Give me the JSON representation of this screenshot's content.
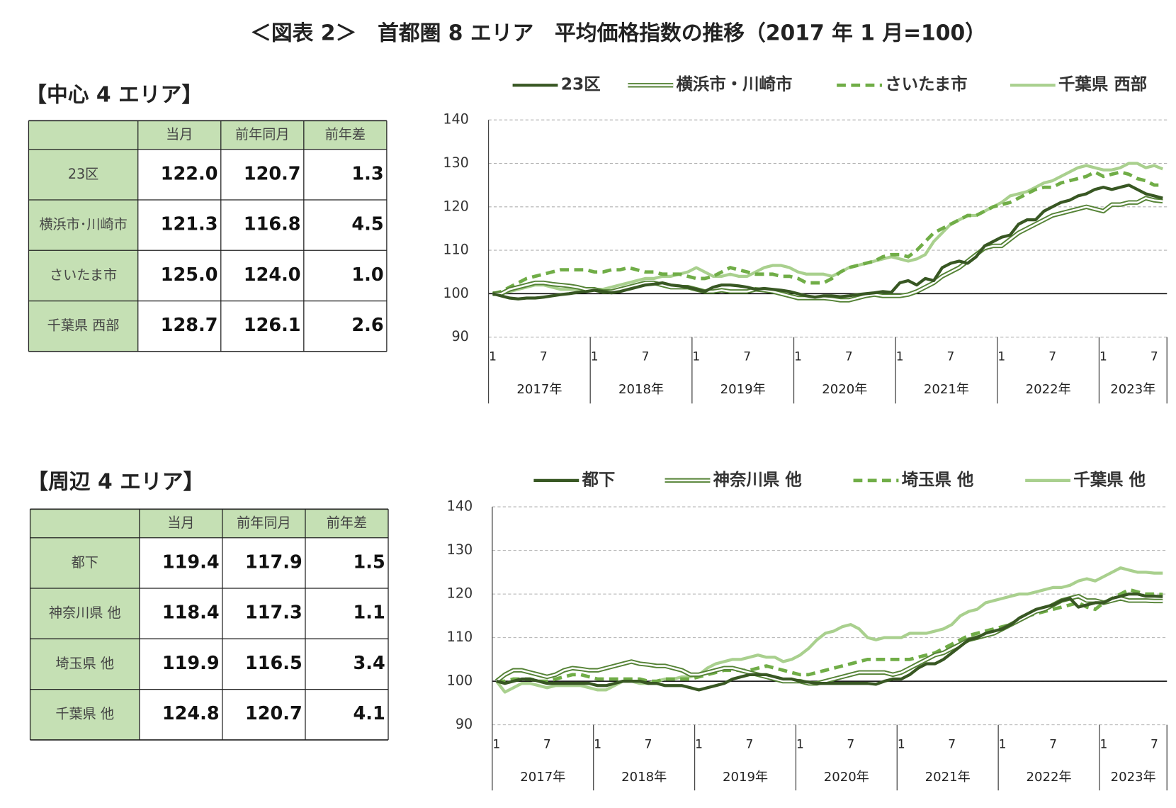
{
  "title": "＜図表 2＞　首都圏 8 エリア　平均価格指数の推移（2017 年 1 月=100）",
  "sections": [
    {
      "heading": "【中心 4 エリア】",
      "table": {
        "columns": [
          "当月",
          "前年同月",
          "前年差"
        ],
        "rows": [
          [
            "23区",
            "122.0",
            "120.7",
            "1.3"
          ],
          [
            "横浜市･川崎市",
            "121.3",
            "116.8",
            "4.5"
          ],
          [
            "さいたま市",
            "125.0",
            "124.0",
            "1.0"
          ],
          [
            "千葉県 西部",
            "128.7",
            "126.1",
            "2.6"
          ]
        ]
      }
    },
    {
      "heading": "【周辺 4 エリア】",
      "table": {
        "columns": [
          "当月",
          "前年同月",
          "前年差"
        ],
        "rows": [
          [
            "都下",
            "119.4",
            "117.9",
            "1.5"
          ],
          [
            "神奈川県 他",
            "118.4",
            "117.3",
            "1.1"
          ],
          [
            "埼玉県 他",
            "119.9",
            "116.5",
            "3.4"
          ],
          [
            "千葉県 他",
            "124.8",
            "120.7",
            "4.1"
          ]
        ]
      }
    }
  ],
  "chart_data": [
    {
      "type": "line",
      "categories": [
        "1",
        null,
        null,
        null,
        null,
        null,
        "7",
        null,
        null,
        null,
        null,
        null,
        "1",
        null,
        null,
        null,
        null,
        null,
        "7",
        null,
        null,
        null,
        null,
        null,
        "1",
        null,
        null,
        null,
        null,
        null,
        "7",
        null,
        null,
        null,
        null,
        null,
        "1",
        null,
        null,
        null,
        null,
        null,
        "7",
        null,
        null,
        null,
        null,
        null,
        "1",
        null,
        null,
        null,
        null,
        null,
        "7",
        null,
        null,
        null,
        null,
        null,
        "1",
        null,
        null,
        null,
        null,
        null,
        "7",
        null,
        null,
        null,
        null,
        null,
        "1",
        null,
        null,
        null,
        null,
        null,
        "7",
        null
      ],
      "year_labels": [
        "2017年",
        "2018年",
        "2019年",
        "2020年",
        "2021年",
        "2022年",
        "2023年"
      ],
      "ylim": [
        90,
        140
      ],
      "yticks": [
        90,
        100,
        110,
        120,
        130,
        140
      ],
      "grid": true,
      "reference_line": 100,
      "legend": "top",
      "series": [
        {
          "name": "23区",
          "color": "#385723",
          "line_style": "solid",
          "values": [
            100,
            99.5,
            99,
            98.8,
            99,
            99,
            99.2,
            99.5,
            99.8,
            100,
            100.3,
            100.5,
            100.8,
            100.5,
            100.2,
            100.5,
            101,
            101.5,
            102,
            102.2,
            102.5,
            102,
            101.8,
            101.5,
            101,
            100.5,
            101.5,
            102,
            102,
            101.8,
            101.5,
            101,
            101.2,
            101,
            100.8,
            100.5,
            100,
            99.5,
            99.2,
            99.5,
            99.5,
            99.3,
            99.5,
            99.8,
            100,
            100.2,
            100.5,
            100.3,
            102.5,
            103,
            102,
            103.5,
            103,
            106,
            107,
            107.5,
            107,
            108.5,
            111,
            112,
            113,
            113.5,
            116,
            117,
            117,
            119,
            120,
            121,
            121.5,
            122.5,
            123,
            124,
            124.5,
            124,
            124.5,
            125,
            124,
            123,
            122.5,
            122
          ]
        },
        {
          "name": "横浜市・川崎市",
          "color": "#548235",
          "line_style": "double",
          "values": [
            100,
            100,
            101,
            101.5,
            102,
            102.5,
            102.5,
            102.2,
            102,
            101.8,
            101.5,
            101,
            101,
            100.5,
            100.5,
            101,
            101.5,
            102,
            102.5,
            102.5,
            102,
            101.5,
            101.5,
            101.5,
            101,
            100.5,
            100.5,
            100.8,
            100.5,
            100.5,
            100.5,
            101,
            100.8,
            100.5,
            100,
            99.5,
            99,
            99,
            99,
            99,
            98.8,
            98.5,
            98.5,
            99,
            99.5,
            99.8,
            99.5,
            99.5,
            99.5,
            99.8,
            100.5,
            101.5,
            102.5,
            104,
            105,
            106,
            107.5,
            109,
            110.5,
            111,
            111,
            112.5,
            114,
            115,
            116,
            117,
            118,
            118.5,
            119,
            119.5,
            120,
            119.5,
            119,
            120.5,
            120.5,
            121,
            121,
            122,
            121.5,
            121.3
          ]
        },
        {
          "name": "さいたま市",
          "color": "#70ad47",
          "line_style": "dashed",
          "values": [
            100,
            100.5,
            101.5,
            102.5,
            103.5,
            104,
            104.5,
            105,
            105.5,
            105.5,
            105.5,
            105.5,
            105,
            105,
            105.5,
            105.5,
            106,
            105.5,
            105,
            105,
            104.5,
            104.5,
            104.5,
            104,
            103.5,
            103.5,
            104,
            105,
            106,
            105.5,
            105,
            104.5,
            104.5,
            104.5,
            104,
            104,
            103.5,
            102.5,
            102.5,
            102.5,
            103.5,
            105,
            106,
            106.5,
            107,
            107.5,
            108.5,
            109,
            109,
            108.5,
            110,
            112,
            114,
            115,
            116,
            117,
            118,
            118,
            119,
            120,
            120.5,
            121,
            122,
            123,
            124,
            124.5,
            124.5,
            125.5,
            126,
            126.5,
            127,
            128,
            127,
            127.5,
            128,
            127.5,
            126.5,
            126,
            125,
            125
          ]
        },
        {
          "name": "千葉県 西部",
          "color": "#a9d08e",
          "line_style": "solid",
          "values": [
            100,
            100,
            100.5,
            101,
            101.5,
            102,
            102,
            101.5,
            101,
            101,
            101,
            101,
            101,
            101,
            101.5,
            102,
            102.5,
            103,
            103.5,
            103.5,
            104,
            104,
            104.5,
            105,
            106,
            105,
            104,
            104,
            104.5,
            104,
            104,
            105,
            106,
            106.5,
            106.5,
            106,
            105,
            104.5,
            104.5,
            104.5,
            104,
            105,
            106,
            106.5,
            107,
            107.5,
            108,
            108.5,
            108,
            107.5,
            108,
            109,
            112,
            114,
            116,
            117,
            118,
            118,
            119,
            120,
            121,
            122.5,
            123,
            123.5,
            124.5,
            125.5,
            126,
            127,
            128,
            129,
            129.5,
            129,
            128.5,
            128.5,
            129,
            130,
            130,
            129,
            129.5,
            128.7
          ]
        }
      ]
    },
    {
      "type": "line",
      "categories": [
        "1",
        null,
        null,
        null,
        null,
        null,
        "7",
        null,
        null,
        null,
        null,
        null,
        "1",
        null,
        null,
        null,
        null,
        null,
        "7",
        null,
        null,
        null,
        null,
        null,
        "1",
        null,
        null,
        null,
        null,
        null,
        "7",
        null,
        null,
        null,
        null,
        null,
        "1",
        null,
        null,
        null,
        null,
        null,
        "7",
        null,
        null,
        null,
        null,
        null,
        "1",
        null,
        null,
        null,
        null,
        null,
        "7",
        null,
        null,
        null,
        null,
        null,
        "1",
        null,
        null,
        null,
        null,
        null,
        "7",
        null,
        null,
        null,
        null,
        null,
        "1",
        null,
        null,
        null,
        null,
        null,
        "7",
        null
      ],
      "year_labels": [
        "2017年",
        "2018年",
        "2019年",
        "2020年",
        "2021年",
        "2022年",
        "2023年"
      ],
      "ylim": [
        90,
        140
      ],
      "yticks": [
        90,
        100,
        110,
        120,
        130,
        140
      ],
      "grid": true,
      "reference_line": 100,
      "legend": "top",
      "series": [
        {
          "name": "都下",
          "color": "#385723",
          "line_style": "solid",
          "values": [
            100,
            99.5,
            100,
            100.5,
            100.5,
            100,
            99.5,
            99.5,
            99.5,
            99.5,
            99.5,
            99.5,
            99,
            99,
            99.5,
            100,
            100,
            100,
            99.5,
            99.5,
            99,
            99,
            99,
            98.5,
            98,
            98.5,
            99,
            99.5,
            100.5,
            101,
            101.5,
            101.5,
            101.5,
            101,
            100.5,
            100.5,
            100,
            99.8,
            99.5,
            99.5,
            99.5,
            99.5,
            99.5,
            99.5,
            99.5,
            99.3,
            100,
            100.5,
            100.5,
            101.5,
            103,
            104,
            104,
            105,
            106.5,
            108,
            109.5,
            110,
            111,
            111.5,
            112,
            113,
            114.5,
            115.5,
            116.5,
            117,
            117.5,
            118.5,
            119,
            117,
            117.5,
            118,
            118,
            119,
            119.5,
            120,
            120,
            119.5,
            119.5,
            119.4
          ]
        },
        {
          "name": "神奈川県 他",
          "color": "#548235",
          "line_style": "double",
          "values": [
            100,
            101.5,
            102.5,
            102.5,
            102,
            101.5,
            101,
            101.5,
            102.5,
            103,
            102.8,
            102.5,
            102.5,
            103,
            103.5,
            104,
            104.5,
            104,
            103.8,
            103.5,
            103.5,
            103,
            102.5,
            101.5,
            101.5,
            102,
            102.5,
            103,
            103,
            102.5,
            102,
            101.5,
            101,
            100.5,
            100,
            100,
            100,
            99.5,
            99.5,
            100,
            100.5,
            101,
            101.5,
            102,
            102,
            102,
            102,
            101.5,
            102,
            103,
            104,
            105,
            106,
            106.5,
            107.5,
            108.5,
            109.5,
            110,
            110.5,
            111,
            112,
            113,
            114,
            115,
            116,
            116.5,
            117.5,
            118.5,
            119,
            119.5,
            118.5,
            118.5,
            118,
            118.5,
            119,
            118.5,
            118.5,
            118.5,
            118.4,
            118.4
          ]
        },
        {
          "name": "埼玉県 他",
          "color": "#70ad47",
          "line_style": "dashed",
          "values": [
            100,
            100,
            100.5,
            100.5,
            100.5,
            100,
            100,
            100.5,
            101,
            101.5,
            101.5,
            101,
            100.5,
            100.5,
            100.5,
            100.5,
            100.5,
            100.5,
            100,
            100,
            100.5,
            100.5,
            100.5,
            100.5,
            101,
            101.5,
            102,
            102.5,
            102.5,
            102.5,
            102.5,
            103,
            103.5,
            103,
            102.5,
            102,
            101.5,
            101.5,
            102,
            102.5,
            103,
            103.5,
            104,
            104.5,
            105,
            105,
            105,
            105,
            105,
            105,
            105.5,
            106,
            106.5,
            107.5,
            108.5,
            109.5,
            110.5,
            111,
            111.5,
            112,
            112.5,
            113,
            114,
            115,
            115.5,
            116,
            116.5,
            117,
            117.5,
            118,
            117,
            116.5,
            118,
            119,
            120,
            121,
            120.5,
            120,
            120,
            119.9
          ]
        },
        {
          "name": "千葉県 他",
          "color": "#a9d08e",
          "line_style": "solid",
          "values": [
            100,
            97.5,
            98.5,
            99.5,
            99.5,
            99,
            98.5,
            99,
            99,
            99,
            99,
            98.5,
            98,
            98,
            99,
            100,
            100,
            99.5,
            99.5,
            100,
            100.5,
            100.5,
            101,
            101,
            101.5,
            103,
            104,
            104.5,
            105,
            105,
            105.5,
            106,
            105.5,
            105.5,
            104.5,
            105,
            106,
            107.5,
            109.5,
            111,
            111.5,
            112.5,
            113,
            112,
            110,
            109.5,
            110,
            110,
            110,
            111,
            111,
            111,
            111.5,
            112,
            113,
            115,
            116,
            116.5,
            118,
            118.5,
            119,
            119.5,
            120,
            120,
            120.5,
            121,
            121.5,
            121.5,
            122,
            123,
            123.5,
            123,
            124,
            125,
            126,
            125.5,
            125,
            125,
            124.8,
            124.8
          ]
        }
      ]
    }
  ]
}
